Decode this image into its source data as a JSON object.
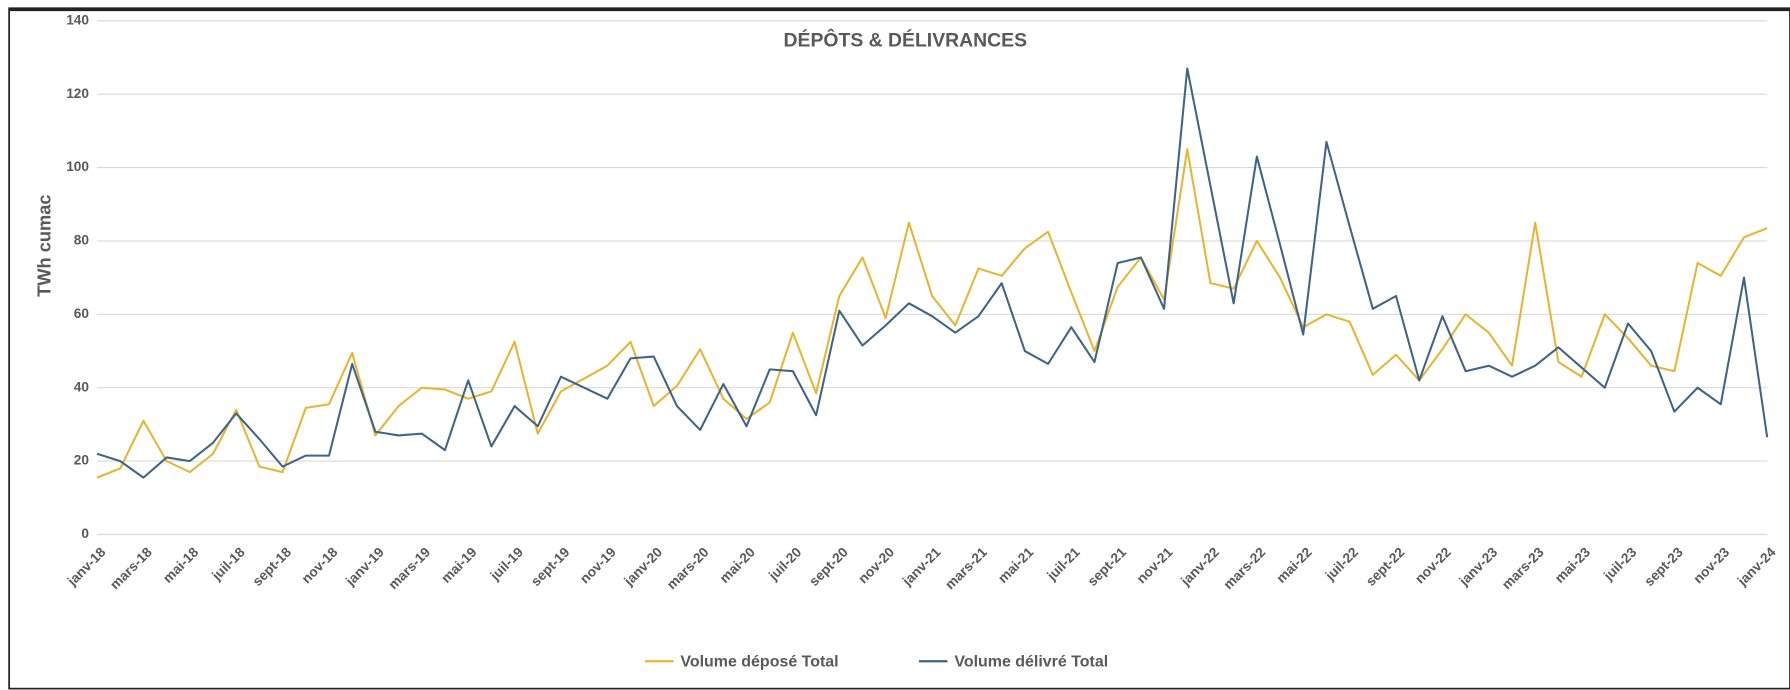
{
  "chart_data": {
    "type": "line",
    "title": "DÉPÔTS & DÉLIVRANCES",
    "y_label": "TWh cumac",
    "categories": [
      "janv-18",
      null,
      "mars-18",
      null,
      "mai-18",
      null,
      "juil-18",
      null,
      "sept-18",
      null,
      "nov-18",
      null,
      "janv-19",
      null,
      "mars-19",
      null,
      "mai-19",
      null,
      "juil-19",
      null,
      "sept-19",
      null,
      "nov-19",
      null,
      "janv-20",
      null,
      "mars-20",
      null,
      "mai-20",
      null,
      "juil-20",
      null,
      "sept-20",
      null,
      "nov-20",
      null,
      "janv-21",
      null,
      "mars-21",
      null,
      "mai-21",
      null,
      "juil-21",
      null,
      "sept-21",
      null,
      "nov-21",
      null,
      "janv-22",
      null,
      "mars-22",
      null,
      "mai-22",
      null,
      "juil-22",
      null,
      "sept-22",
      null,
      "nov-22",
      null,
      "janv-23",
      null,
      "mars-23",
      null,
      "mai-23",
      null,
      "juil-23",
      null,
      "sept-23",
      null,
      "nov-23",
      null,
      "janv-24"
    ],
    "series": [
      {
        "name": "Volume déposé Total",
        "color": "#e8b531",
        "values": [
          15.5,
          18,
          31,
          20,
          17,
          22,
          34,
          18.5,
          17,
          34.5,
          35.5,
          49.5,
          27,
          35,
          40,
          39.5,
          37,
          39,
          52.5,
          27.5,
          39,
          42.5,
          46,
          52.5,
          35,
          40.5,
          50.5,
          37,
          31.5,
          36,
          55,
          38.5,
          65,
          75.5,
          59,
          85,
          65,
          57,
          72.5,
          70.5,
          78,
          82.5,
          66,
          50,
          67.5,
          75.5,
          64,
          105,
          68.5,
          67,
          80,
          70,
          56.5,
          60,
          58,
          43.5,
          49,
          42,
          50.5,
          60,
          55,
          46,
          85,
          47,
          43,
          60,
          53.5,
          46,
          44.5,
          74,
          70.5,
          81,
          83.5
        ]
      },
      {
        "name": "Volume délivré Total",
        "color": "#3e6488",
        "values": [
          22,
          20,
          15.5,
          21,
          20,
          25,
          33,
          26,
          18.5,
          21.5,
          21.5,
          46.5,
          28,
          27,
          27.5,
          23,
          42,
          24,
          35,
          29.5,
          43,
          40,
          37,
          48,
          48.5,
          35,
          28.5,
          41,
          29.5,
          45,
          44.5,
          32.5,
          61,
          51.5,
          57,
          63,
          59.5,
          55,
          59.5,
          68.5,
          50,
          46.5,
          56.5,
          47,
          74,
          75.5,
          61.5,
          127,
          95,
          63,
          103,
          79,
          54.5,
          107,
          84,
          61.5,
          65,
          42,
          59.5,
          44.5,
          46,
          43,
          46,
          51,
          45.5,
          40,
          57.5,
          50,
          33.5,
          40,
          35.5,
          70,
          26.5
        ]
      }
    ],
    "ylim": [
      0,
      140
    ],
    "yticks": [
      0,
      20,
      40,
      60,
      80,
      100,
      120,
      140
    ],
    "grid": true,
    "legend": "bottom"
  }
}
